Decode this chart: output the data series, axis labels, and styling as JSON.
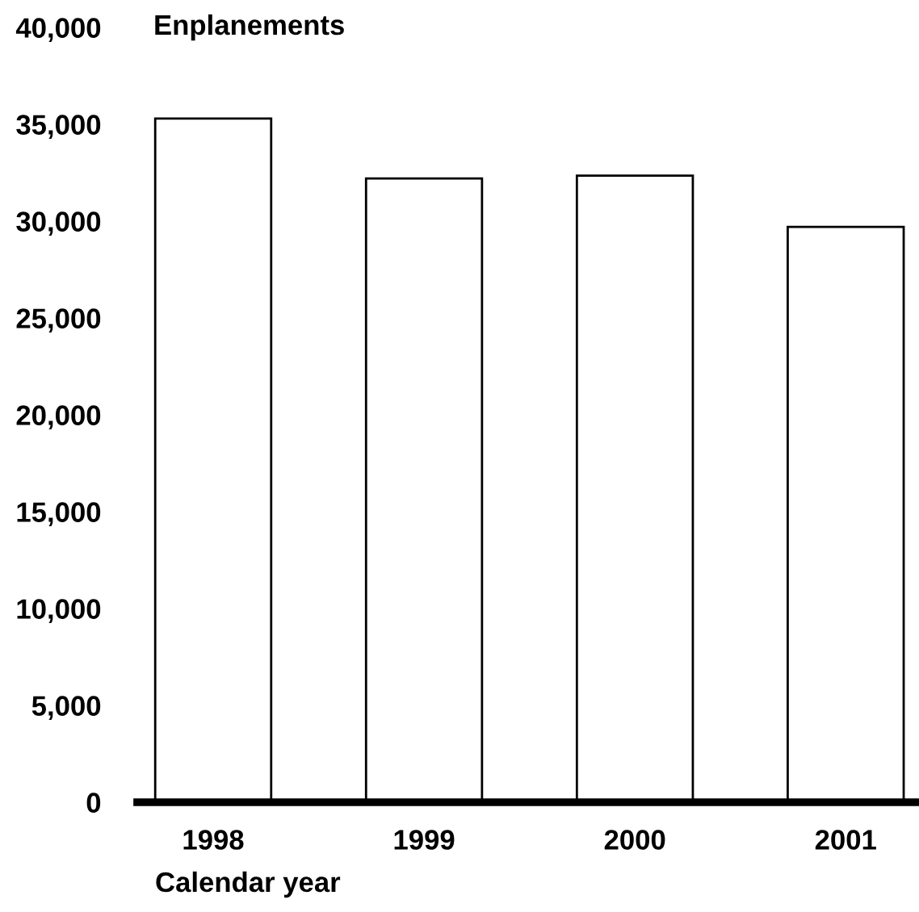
{
  "chart_data": {
    "type": "bar",
    "ylabel": "Enplanements",
    "xlabel": "Calendar year",
    "categories": [
      "1998",
      "1999",
      "2000",
      "2001"
    ],
    "values": [
      35300,
      32200,
      32350,
      29700
    ],
    "color": "#ffffff",
    "ylim": [
      0,
      40000
    ],
    "yticks": [
      {
        "value": 0,
        "label": "0"
      },
      {
        "value": 5000,
        "label": "5,000"
      },
      {
        "value": 10000,
        "label": "10,000"
      },
      {
        "value": 15000,
        "label": "15,000"
      },
      {
        "value": 20000,
        "label": "20,000"
      },
      {
        "value": 25000,
        "label": "25,000"
      },
      {
        "value": 30000,
        "label": "30,000"
      },
      {
        "value": 35000,
        "label": "35,000"
      },
      {
        "value": 40000,
        "label": "40,000"
      }
    ],
    "grid": false,
    "legend": false
  }
}
